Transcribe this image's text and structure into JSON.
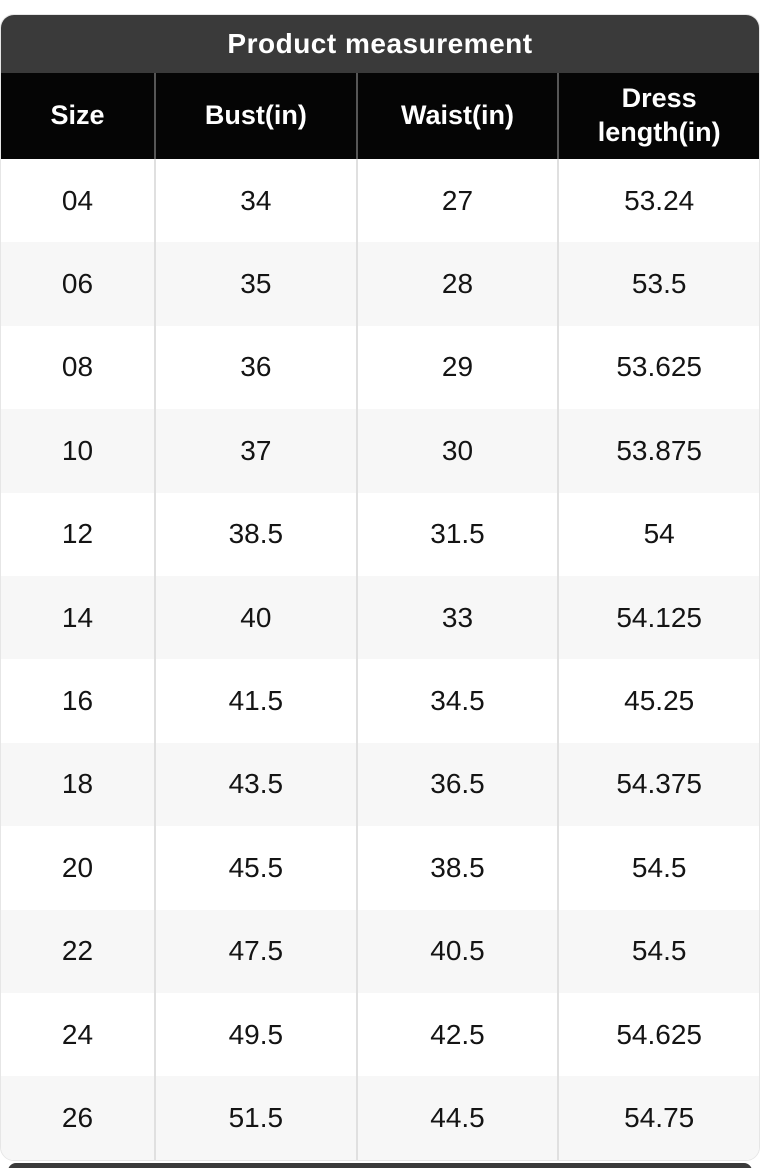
{
  "table": {
    "title": "Product measurement",
    "headers": [
      "Size",
      "Bust(in)",
      "Waist(in)",
      "Dress length(in)"
    ],
    "rows": [
      [
        "04",
        "34",
        "27",
        "53.24"
      ],
      [
        "06",
        "35",
        "28",
        "53.5"
      ],
      [
        "08",
        "36",
        "29",
        "53.625"
      ],
      [
        "10",
        "37",
        "30",
        "53.875"
      ],
      [
        "12",
        "38.5",
        "31.5",
        "54"
      ],
      [
        "14",
        "40",
        "33",
        "54.125"
      ],
      [
        "16",
        "41.5",
        "34.5",
        "45.25"
      ],
      [
        "18",
        "43.5",
        "36.5",
        "54.375"
      ],
      [
        "20",
        "45.5",
        "38.5",
        "54.5"
      ],
      [
        "22",
        "47.5",
        "40.5",
        "54.5"
      ],
      [
        "24",
        "49.5",
        "42.5",
        "54.625"
      ],
      [
        "26",
        "51.5",
        "44.5",
        "54.75"
      ]
    ]
  },
  "colors": {
    "title_bar_bg": "#3a3a3a",
    "header_bg": "#050505",
    "header_text": "#ffffff",
    "row_bg": "#ffffff",
    "row_alt_bg": "#f7f7f7",
    "body_divider": "#e0e0e0",
    "header_divider": "#565656",
    "body_text": "#141414"
  }
}
